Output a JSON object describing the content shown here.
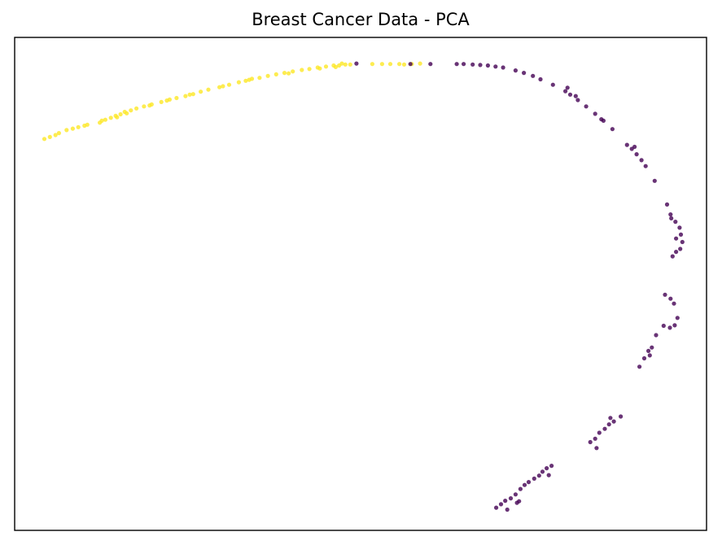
{
  "chart_data": {
    "type": "scatter",
    "title": "Breast Cancer Data - PCA",
    "xlabel": "",
    "ylabel": "",
    "axis_ticks": false,
    "xlim": [
      0,
      100
    ],
    "ylim": [
      0,
      100
    ],
    "grid": false,
    "legend": "none",
    "series": [
      {
        "color": "#fde725",
        "points": [
          [
            4.3,
            79.4
          ],
          [
            5.1,
            79.8
          ],
          [
            5.9,
            80.2
          ],
          [
            6.4,
            80.6
          ],
          [
            7.5,
            81.2
          ],
          [
            8.4,
            81.5
          ],
          [
            9.2,
            81.8
          ],
          [
            10.1,
            82.1
          ],
          [
            10.5,
            82.3
          ],
          [
            12.3,
            82.7
          ],
          [
            13.1,
            83.3
          ],
          [
            13.9,
            83.7
          ],
          [
            14.6,
            84.1
          ],
          [
            15.3,
            84.4
          ],
          [
            15.9,
            84.9
          ],
          [
            16.8,
            85.2
          ],
          [
            17.6,
            85.6
          ],
          [
            18.7,
            86.0
          ],
          [
            19.8,
            86.4
          ],
          [
            21.2,
            86.9
          ],
          [
            22.4,
            87.4
          ],
          [
            23.4,
            87.7
          ],
          [
            24.7,
            88.1
          ],
          [
            25.8,
            88.5
          ],
          [
            26.9,
            89.0
          ],
          [
            28.0,
            89.4
          ],
          [
            29.6,
            89.9
          ],
          [
            31.0,
            90.4
          ],
          [
            32.4,
            90.9
          ],
          [
            33.4,
            91.2
          ],
          [
            34.3,
            91.6
          ],
          [
            35.4,
            91.8
          ],
          [
            36.6,
            92.2
          ],
          [
            37.8,
            92.5
          ],
          [
            39.0,
            92.8
          ],
          [
            40.2,
            93.1
          ],
          [
            41.5,
            93.4
          ],
          [
            42.6,
            93.6
          ],
          [
            43.8,
            93.9
          ],
          [
            45.0,
            94.1
          ],
          [
            46.1,
            94.3
          ],
          [
            46.9,
            94.3
          ],
          [
            47.8,
            94.5
          ],
          [
            48.5,
            94.5
          ],
          [
            51.7,
            94.6
          ],
          [
            53.1,
            94.6
          ],
          [
            54.3,
            94.6
          ],
          [
            55.6,
            94.6
          ],
          [
            56.3,
            94.5
          ],
          [
            57.4,
            94.6
          ],
          [
            58.6,
            94.7
          ],
          [
            12.6,
            83.1
          ],
          [
            14.8,
            83.8
          ],
          [
            19.5,
            86.2
          ],
          [
            22.0,
            87.2
          ],
          [
            25.3,
            88.4
          ],
          [
            30.1,
            90.1
          ],
          [
            33.9,
            91.4
          ],
          [
            39.6,
            92.7
          ],
          [
            44.1,
            93.7
          ],
          [
            46.4,
            94.0
          ],
          [
            47.3,
            94.7
          ],
          [
            16.2,
            84.6
          ]
        ]
      },
      {
        "color": "#440154",
        "points": [
          [
            49.4,
            94.7
          ],
          [
            57.2,
            94.6
          ],
          [
            63.9,
            94.6
          ],
          [
            64.9,
            94.6
          ],
          [
            66.2,
            94.5
          ],
          [
            67.3,
            94.4
          ],
          [
            68.4,
            94.3
          ],
          [
            69.5,
            94.1
          ],
          [
            70.6,
            93.9
          ],
          [
            72.4,
            93.3
          ],
          [
            73.6,
            92.8
          ],
          [
            74.9,
            92.2
          ],
          [
            76.0,
            91.5
          ],
          [
            77.8,
            90.4
          ],
          [
            79.6,
            89.1
          ],
          [
            80.3,
            88.4
          ],
          [
            81.4,
            87.3
          ],
          [
            82.6,
            86.0
          ],
          [
            83.9,
            84.5
          ],
          [
            85.1,
            83.1
          ],
          [
            86.4,
            81.4
          ],
          [
            88.5,
            78.2
          ],
          [
            89.2,
            77.4
          ],
          [
            89.9,
            76.3
          ],
          [
            90.6,
            75.1
          ],
          [
            91.2,
            73.9
          ],
          [
            92.5,
            70.9
          ],
          [
            94.3,
            66.1
          ],
          [
            94.8,
            64.1
          ],
          [
            95.5,
            62.6
          ],
          [
            96.1,
            61.4
          ],
          [
            96.3,
            60.0
          ],
          [
            96.5,
            58.5
          ],
          [
            96.2,
            57.1
          ],
          [
            95.6,
            56.5
          ],
          [
            95.1,
            55.6
          ],
          [
            94.8,
            47.0
          ],
          [
            95.3,
            46.0
          ],
          [
            95.8,
            43.1
          ],
          [
            95.4,
            41.6
          ],
          [
            94.7,
            41.1
          ],
          [
            93.8,
            41.5
          ],
          [
            92.7,
            39.6
          ],
          [
            92.1,
            37.1
          ],
          [
            91.6,
            36.4
          ],
          [
            91.0,
            34.9
          ],
          [
            90.3,
            33.2
          ],
          [
            87.6,
            23.1
          ],
          [
            86.6,
            22.1
          ],
          [
            85.9,
            21.5
          ],
          [
            85.3,
            20.6
          ],
          [
            84.5,
            19.8
          ],
          [
            83.9,
            18.6
          ],
          [
            83.2,
            17.9
          ],
          [
            84.1,
            16.7
          ],
          [
            77.6,
            13.1
          ],
          [
            76.9,
            12.6
          ],
          [
            76.3,
            11.9
          ],
          [
            75.8,
            11.1
          ],
          [
            75.1,
            10.5
          ],
          [
            74.3,
            9.8
          ],
          [
            73.7,
            9.2
          ],
          [
            73.1,
            8.4
          ],
          [
            72.4,
            7.3
          ],
          [
            71.7,
            6.5
          ],
          [
            70.9,
            6.0
          ],
          [
            70.3,
            5.3
          ],
          [
            69.6,
            4.6
          ],
          [
            72.9,
            5.9
          ],
          [
            71.2,
            4.2
          ],
          [
            79.9,
            89.8
          ],
          [
            81.1,
            88.1
          ],
          [
            84.8,
            83.4
          ],
          [
            89.6,
            77.8
          ],
          [
            94.9,
            63.3
          ],
          [
            95.6,
            59.2
          ],
          [
            94.0,
            47.8
          ],
          [
            91.8,
            35.5
          ],
          [
            86.1,
            22.8
          ],
          [
            77.2,
            11.2
          ],
          [
            72.6,
            5.6
          ],
          [
            60.1,
            94.6
          ]
        ]
      }
    ]
  }
}
